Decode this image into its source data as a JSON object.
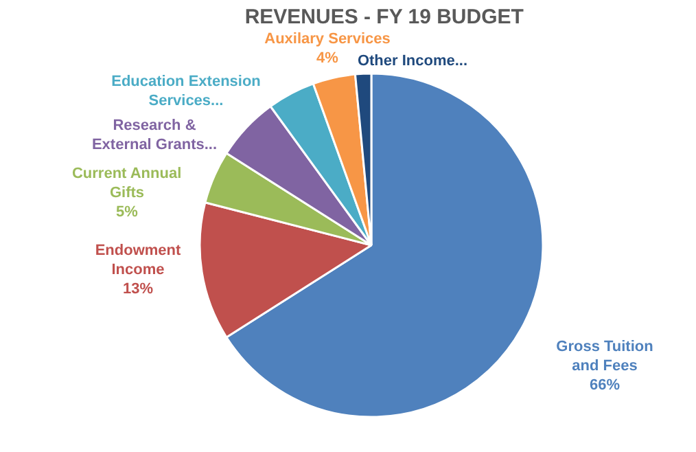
{
  "chart_data": {
    "type": "pie",
    "title": "REVENUES - FY 19 BUDGET",
    "categories": [
      "Gross Tuition and Fees",
      "Endowment Income",
      "Current Annual Gifts",
      "Research & External Grants...",
      "Education Extension Services...",
      "Auxilary Services",
      "Other Income..."
    ],
    "values": [
      66,
      13,
      5,
      6,
      4.5,
      4,
      1.5
    ],
    "value_labels": [
      "66%",
      "13%",
      "5%",
      null,
      null,
      "4%",
      null
    ],
    "colors": [
      "#4f81bd",
      "#c0504d",
      "#9bbb59",
      "#8064a2",
      "#4bacc6",
      "#f79646",
      "#1f497d"
    ]
  }
}
